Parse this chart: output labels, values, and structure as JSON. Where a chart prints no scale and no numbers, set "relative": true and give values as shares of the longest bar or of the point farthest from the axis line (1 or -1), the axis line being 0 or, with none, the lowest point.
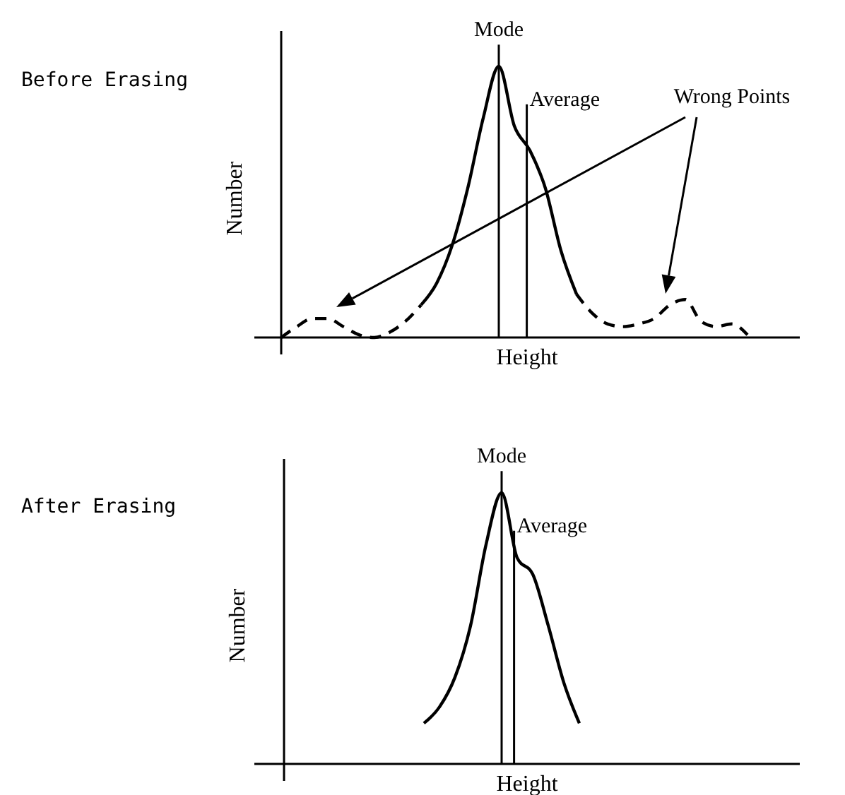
{
  "chart_data": [
    {
      "type": "line",
      "title": "Before Erasing",
      "xlabel": "Height",
      "ylabel": "Number",
      "relative": true,
      "categories": [
        null,
        null,
        null,
        null,
        null,
        null,
        null,
        null,
        null,
        null,
        null,
        null,
        null,
        null,
        null,
        null,
        null,
        null,
        null,
        null,
        null,
        null,
        null,
        null,
        null,
        null,
        null,
        null,
        null,
        null,
        null
      ],
      "series": [
        {
          "color": "#000000",
          "line_style": "solid",
          "values": [
            null,
            null,
            null,
            null,
            null,
            null,
            null,
            null,
            null,
            0.12,
            0.2,
            0.34,
            0.55,
            0.81,
            1.0,
            0.78,
            0.69,
            0.55,
            0.32,
            0.16,
            null,
            null,
            null,
            null,
            null,
            null,
            null,
            null,
            null,
            null,
            null
          ]
        },
        {
          "color": "#000000",
          "line_style": "dashed",
          "values": [
            0,
            0.04,
            0.07,
            0.07,
            0.04,
            0.01,
            0,
            0.02,
            0.06,
            0.12,
            null,
            null,
            null,
            null,
            null,
            null,
            null,
            null,
            null,
            0.16,
            0.09,
            0.05,
            0.04,
            0.05,
            0.07,
            0.12,
            0.14,
            0.06,
            0.04,
            0.05,
            0.01
          ]
        }
      ],
      "annotations": [
        "Mode",
        "Average",
        "Wrong Points"
      ]
    },
    {
      "type": "line",
      "title": "After Erasing",
      "xlabel": "Height",
      "ylabel": "Number",
      "relative": true,
      "categories": [
        null,
        null,
        null,
        null,
        null,
        null,
        null,
        null,
        null,
        null,
        null,
        null,
        null,
        null,
        null,
        null,
        null,
        null,
        null,
        null,
        null,
        null,
        null,
        null,
        null,
        null,
        null,
        null,
        null,
        null,
        null
      ],
      "series": [
        {
          "color": "#000000",
          "line_style": "solid",
          "values": [
            null,
            null,
            null,
            null,
            null,
            null,
            null,
            null,
            null,
            0.15,
            0.21,
            0.32,
            0.51,
            0.81,
            1.0,
            0.76,
            0.7,
            0.51,
            0.3,
            0.15,
            null,
            null,
            null,
            null,
            null,
            null,
            null,
            null,
            null,
            null,
            null
          ]
        }
      ],
      "annotations": [
        "Mode",
        "Average"
      ]
    }
  ]
}
